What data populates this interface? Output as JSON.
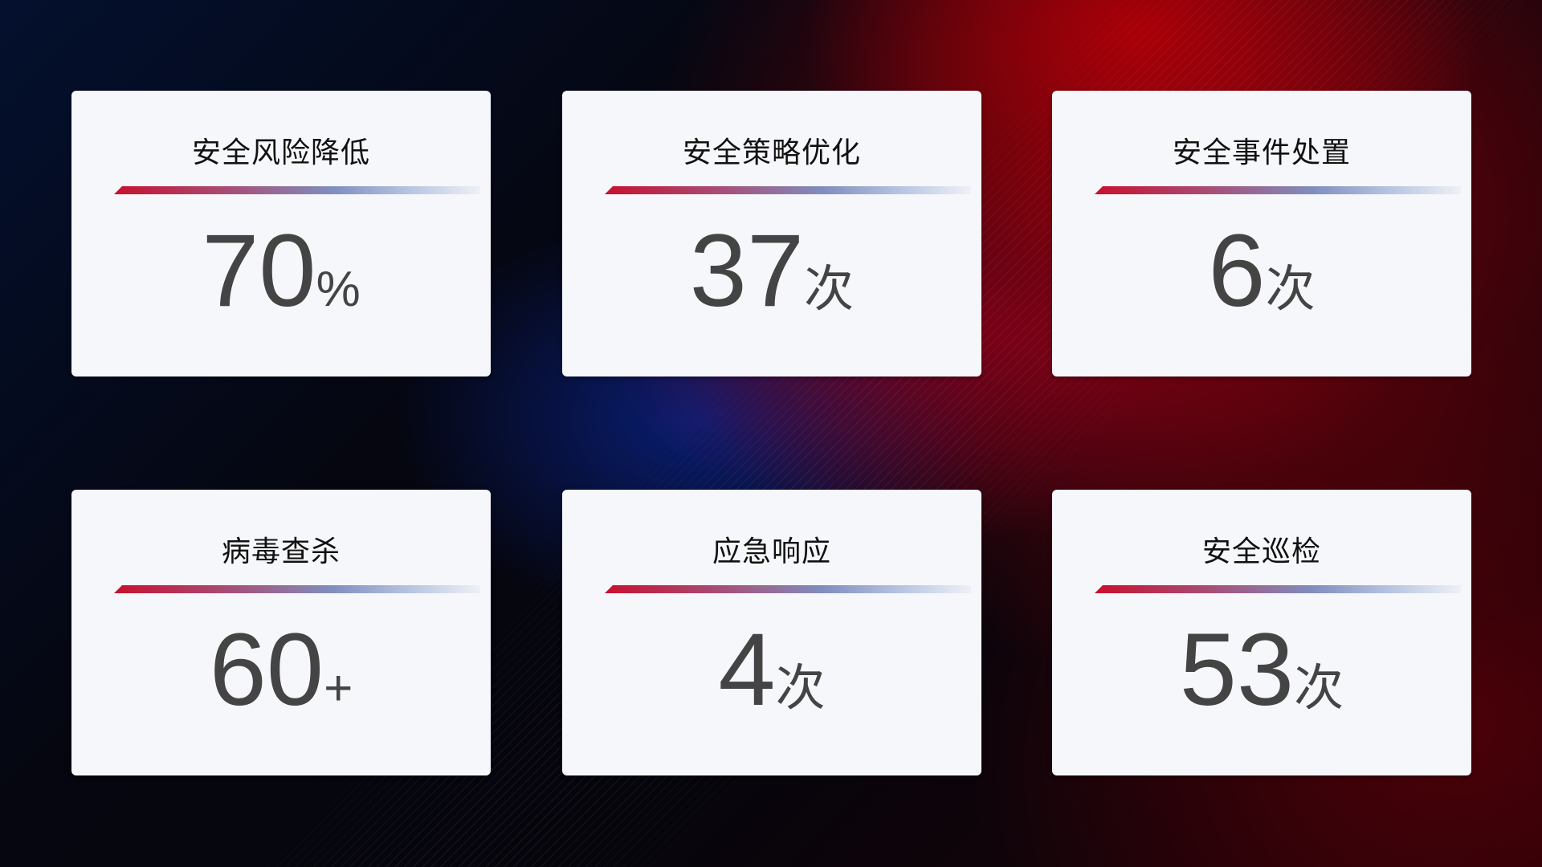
{
  "cards": [
    {
      "title": "安全风险降低",
      "value": "70",
      "unit": "%"
    },
    {
      "title": "安全策略优化",
      "value": "37",
      "unit": "次"
    },
    {
      "title": "安全事件处置",
      "value": "6",
      "unit": "次"
    },
    {
      "title": "病毒查杀",
      "value": "60",
      "unit": "+"
    },
    {
      "title": "应急响应",
      "value": "4",
      "unit": "次"
    },
    {
      "title": "安全巡检",
      "value": "53",
      "unit": "次"
    }
  ],
  "colors": {
    "accent_red": "#c8102e",
    "accent_blue": "#7f8fc0",
    "card_bg": "#f6f7fb",
    "value_text": "#444444"
  }
}
